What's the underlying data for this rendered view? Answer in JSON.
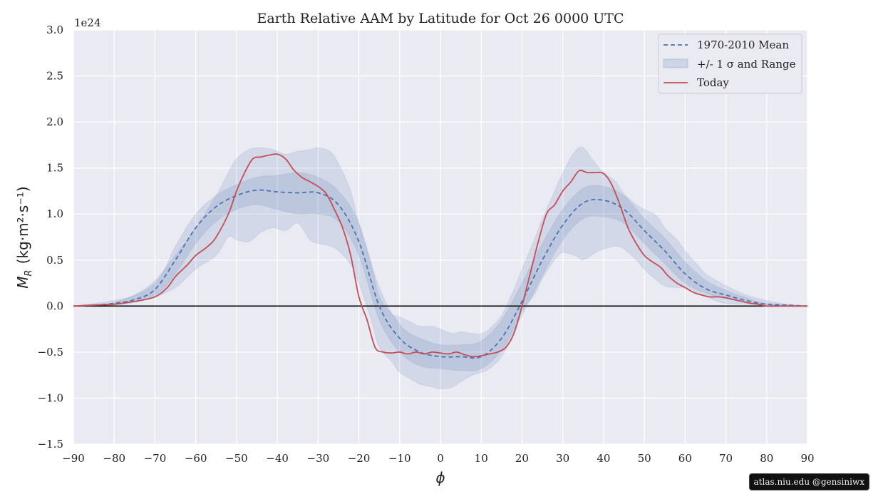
{
  "chart_data": {
    "type": "line",
    "title": "Earth Relative AAM by Latitude for Oct 26 0000 UTC",
    "xlabel": "ϕ",
    "ylabel_main": "M",
    "ylabel_sub": "R",
    "ylabel_units": "(kg·m²·s⁻¹)",
    "y_offset_label": "1e24",
    "xlim": [
      -90,
      90
    ],
    "ylim": [
      -1.5,
      3.0
    ],
    "x_ticks": [
      -90,
      -80,
      -70,
      -60,
      -50,
      -40,
      -30,
      -20,
      -10,
      0,
      10,
      20,
      30,
      40,
      50,
      60,
      70,
      80,
      90
    ],
    "x_tick_labels": [
      "−90",
      "−80",
      "−70",
      "−60",
      "−50",
      "−40",
      "−30",
      "−20",
      "−10",
      "0",
      "10",
      "20",
      "30",
      "40",
      "50",
      "60",
      "70",
      "80",
      "90"
    ],
    "y_ticks": [
      -1.5,
      -1.0,
      -0.5,
      0.0,
      0.5,
      1.0,
      1.5,
      2.0,
      2.5,
      3.0
    ],
    "y_tick_labels": [
      "−1.5",
      "−1.0",
      "−0.5",
      "0.0",
      "0.5",
      "1.0",
      "1.5",
      "2.0",
      "2.5",
      "3.0"
    ],
    "grid": true,
    "legend_position": "top-right",
    "legend": [
      "1970-2010 Mean",
      "+/- 1 σ and Range",
      "Today"
    ],
    "colors": {
      "mean": "#4c72b0",
      "band": "#4c72b0",
      "today": "#c44e52",
      "background": "#eaeaf2",
      "zero_line": "#000000"
    },
    "series": [
      {
        "name": "1970-2010 Mean",
        "style": "dashed",
        "x": [
          -90,
          -85,
          -80,
          -75,
          -70,
          -65,
          -60,
          -55,
          -50,
          -45,
          -40,
          -35,
          -30,
          -25,
          -20,
          -15,
          -10,
          -5,
          0,
          5,
          10,
          15,
          20,
          25,
          30,
          35,
          40,
          45,
          50,
          55,
          60,
          65,
          70,
          75,
          80,
          85,
          90
        ],
        "y": [
          0,
          0.01,
          0.03,
          0.07,
          0.18,
          0.5,
          0.85,
          1.08,
          1.2,
          1.26,
          1.24,
          1.23,
          1.23,
          1.1,
          0.7,
          0.0,
          -0.35,
          -0.5,
          -0.55,
          -0.55,
          -0.55,
          -0.35,
          0.05,
          0.5,
          0.88,
          1.12,
          1.15,
          1.05,
          0.82,
          0.6,
          0.35,
          0.19,
          0.12,
          0.06,
          0.02,
          0.01,
          0
        ]
      },
      {
        "name": "Today",
        "style": "solid",
        "x": [
          -90,
          -85,
          -80,
          -75,
          -70,
          -67,
          -65,
          -62,
          -60,
          -57,
          -55,
          -52,
          -50,
          -48,
          -46,
          -44,
          -42,
          -40,
          -38,
          -36,
          -34,
          -32,
          -30,
          -28,
          -26,
          -24,
          -22,
          -20,
          -18,
          -16,
          -14,
          -12,
          -10,
          -8,
          -6,
          -4,
          -2,
          0,
          2,
          4,
          6,
          8,
          10,
          12,
          14,
          16,
          18,
          20,
          22,
          24,
          26,
          28,
          30,
          32,
          34,
          36,
          38,
          40,
          42,
          44,
          46,
          48,
          50,
          52,
          54,
          56,
          58,
          60,
          62,
          64,
          66,
          68,
          70,
          72,
          74,
          76,
          78,
          80,
          85,
          90
        ],
        "y": [
          0,
          0.01,
          0.02,
          0.05,
          0.1,
          0.2,
          0.32,
          0.45,
          0.55,
          0.65,
          0.75,
          1.0,
          1.25,
          1.45,
          1.6,
          1.62,
          1.64,
          1.65,
          1.6,
          1.48,
          1.4,
          1.35,
          1.3,
          1.22,
          1.05,
          0.85,
          0.55,
          0.1,
          -0.15,
          -0.45,
          -0.5,
          -0.51,
          -0.5,
          -0.52,
          -0.5,
          -0.52,
          -0.5,
          -0.51,
          -0.52,
          -0.5,
          -0.53,
          -0.55,
          -0.54,
          -0.52,
          -0.5,
          -0.45,
          -0.3,
          0.0,
          0.35,
          0.7,
          1.0,
          1.1,
          1.25,
          1.35,
          1.47,
          1.45,
          1.45,
          1.44,
          1.32,
          1.1,
          0.85,
          0.68,
          0.55,
          0.48,
          0.42,
          0.32,
          0.25,
          0.2,
          0.15,
          0.12,
          0.1,
          0.1,
          0.09,
          0.07,
          0.05,
          0.03,
          0.02,
          0,
          0,
          0
        ]
      },
      {
        "name": "+/- 1 σ",
        "style": "band",
        "x": [
          -90,
          -80,
          -70,
          -65,
          -60,
          -55,
          -50,
          -45,
          -40,
          -35,
          -30,
          -25,
          -20,
          -15,
          -10,
          -5,
          0,
          5,
          10,
          15,
          20,
          25,
          30,
          35,
          40,
          45,
          50,
          55,
          60,
          65,
          70,
          75,
          80,
          90
        ],
        "low": [
          0,
          0.02,
          0.12,
          0.35,
          0.68,
          0.92,
          1.05,
          1.1,
          1.05,
          1.0,
          1.0,
          0.92,
          0.55,
          -0.15,
          -0.5,
          -0.65,
          -0.68,
          -0.7,
          -0.68,
          -0.48,
          -0.1,
          0.33,
          0.72,
          0.95,
          0.97,
          0.9,
          0.68,
          0.46,
          0.25,
          0.14,
          0.08,
          0.04,
          0.01,
          0
        ],
        "high": [
          0,
          0.04,
          0.25,
          0.65,
          1.0,
          1.2,
          1.32,
          1.4,
          1.42,
          1.45,
          1.4,
          1.25,
          0.9,
          0.2,
          -0.2,
          -0.35,
          -0.42,
          -0.42,
          -0.38,
          -0.15,
          0.25,
          0.68,
          1.05,
          1.28,
          1.3,
          1.2,
          0.95,
          0.74,
          0.48,
          0.28,
          0.17,
          0.09,
          0.03,
          0
        ]
      },
      {
        "name": "Range",
        "style": "band",
        "x": [
          -90,
          -80,
          -75,
          -70,
          -65,
          -60,
          -55,
          -52,
          -50,
          -47,
          -44,
          -41,
          -38,
          -35,
          -32,
          -30,
          -27,
          -25,
          -22,
          -20,
          -17,
          -15,
          -12,
          -10,
          -7,
          -5,
          -2,
          0,
          3,
          5,
          8,
          10,
          12,
          15,
          18,
          20,
          23,
          25,
          28,
          30,
          33,
          35,
          38,
          40,
          43,
          45,
          48,
          50,
          53,
          55,
          58,
          60,
          63,
          65,
          68,
          70,
          75,
          80,
          85,
          90
        ],
        "low": [
          0,
          0.01,
          0.04,
          0.1,
          0.2,
          0.4,
          0.55,
          0.75,
          0.72,
          0.7,
          0.8,
          0.85,
          0.82,
          0.9,
          0.72,
          0.68,
          0.65,
          0.6,
          0.45,
          0.25,
          -0.15,
          -0.45,
          -0.6,
          -0.72,
          -0.8,
          -0.85,
          -0.88,
          -0.9,
          -0.88,
          -0.82,
          -0.75,
          -0.72,
          -0.68,
          -0.55,
          -0.3,
          -0.05,
          0.12,
          0.3,
          0.5,
          0.58,
          0.55,
          0.5,
          0.58,
          0.62,
          0.65,
          0.62,
          0.5,
          0.4,
          0.28,
          0.22,
          0.2,
          0.2,
          0.15,
          0.1,
          0.05,
          0.03,
          0.02,
          0.01,
          0,
          0
        ],
        "high": [
          0,
          0.06,
          0.12,
          0.28,
          0.55,
          0.85,
          1.2,
          1.45,
          1.6,
          1.7,
          1.72,
          1.7,
          1.65,
          1.68,
          1.7,
          1.72,
          1.68,
          1.55,
          1.25,
          0.9,
          0.45,
          0.1,
          -0.08,
          -0.12,
          -0.18,
          -0.22,
          -0.22,
          -0.25,
          -0.3,
          -0.28,
          -0.3,
          -0.3,
          -0.25,
          -0.1,
          0.18,
          0.4,
          0.72,
          0.95,
          1.25,
          1.45,
          1.68,
          1.72,
          1.55,
          1.45,
          1.35,
          1.22,
          1.1,
          1.05,
          0.98,
          0.85,
          0.72,
          0.6,
          0.45,
          0.35,
          0.27,
          0.22,
          0.12,
          0.06,
          0.02,
          0
        ]
      }
    ]
  },
  "watermark": "atlas.niu.edu  @gensiniwx"
}
